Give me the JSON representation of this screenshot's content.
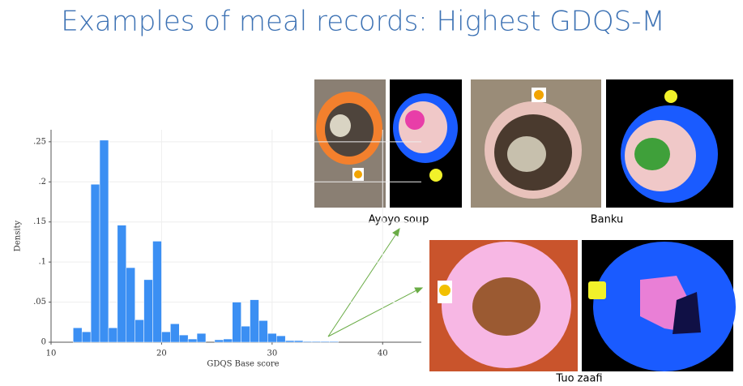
{
  "chart_data": {
    "type": "histogram",
    "title": "Examples of meal records: Highest GDQS-M",
    "x_label": "GDQS Base score",
    "y_label": "Density",
    "bins": [
      12,
      12.8,
      13.6,
      14.4,
      15.2,
      16,
      16.8,
      17.6,
      18.4,
      19.2,
      20,
      20.8,
      21.6,
      22.4,
      23.2,
      24,
      24.8,
      25.6,
      26.4,
      27.2,
      28,
      28.8,
      29.6,
      30.4,
      31.2,
      32,
      32.8,
      33.6,
      34.4,
      35.2,
      36
    ],
    "counts": [
      0.018,
      0.013,
      0.197,
      0.252,
      0.018,
      0.146,
      0.093,
      0.028,
      0.078,
      0.126,
      0.013,
      0.023,
      0.009,
      0.004,
      0.011,
      0,
      0.003,
      0.004,
      0.05,
      0.02,
      0.053,
      0.027,
      0.011,
      0.008,
      0.002,
      0.002,
      0.001,
      0.001,
      0.001,
      0.001
    ],
    "color": "#3b8ff3",
    "xlim": [
      10,
      43.5
    ],
    "xticks": [
      10,
      20,
      30,
      40
    ],
    "ylim": [
      0,
      0.265
    ],
    "yticks": [
      0,
      {
        "value": 0.05,
        "label": ".05"
      },
      {
        "value": 0.1,
        "label": ".1"
      },
      {
        "value": 0.15,
        "label": ".15"
      },
      {
        "value": 0.2,
        "label": ".2"
      },
      {
        "value": 0.25,
        "label": ".25"
      }
    ],
    "grid": true,
    "photo_captions": [
      "Ayoyo soup",
      "Banku",
      "Tuo zaafi"
    ]
  }
}
